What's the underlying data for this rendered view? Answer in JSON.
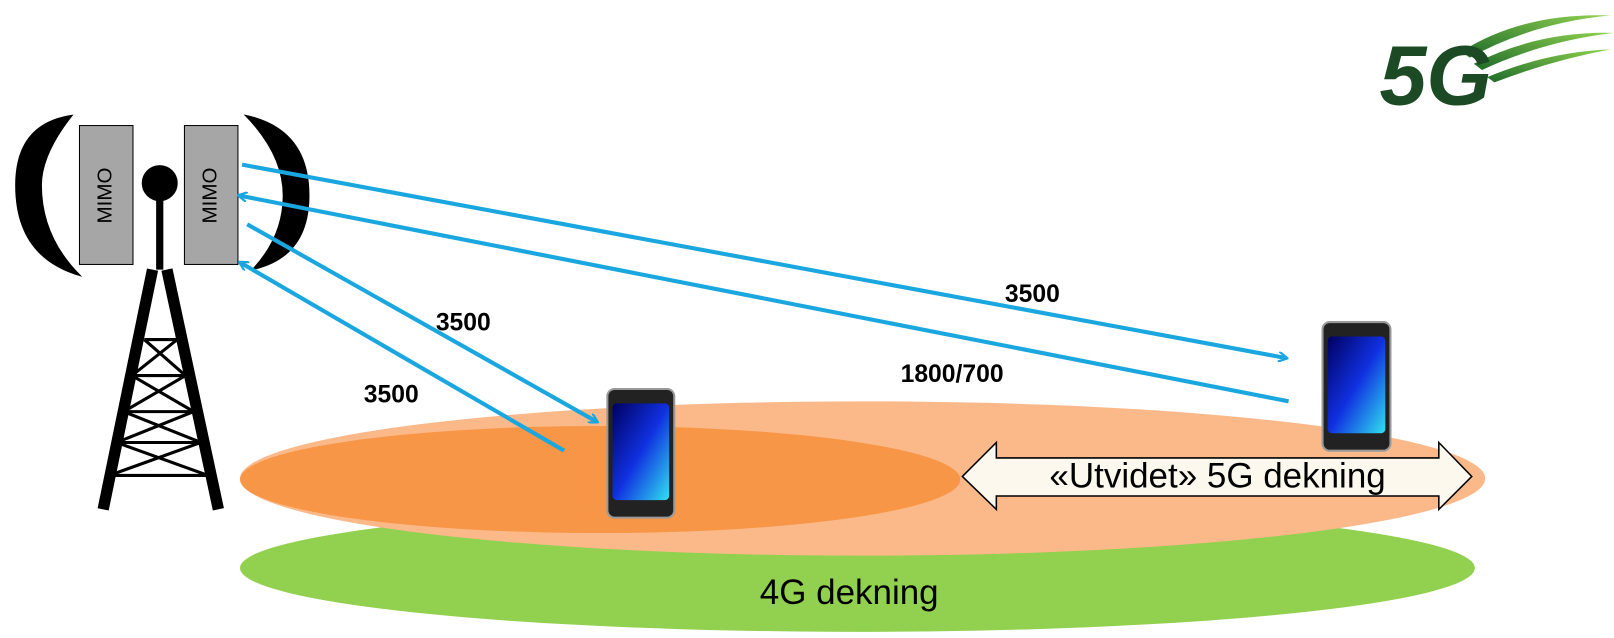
{
  "logo": "5G",
  "antennas": [
    {
      "label": "MIMO"
    },
    {
      "label": "MIMO"
    }
  ],
  "links": [
    {
      "label": "3500"
    },
    {
      "label": "1800/700"
    },
    {
      "label": "3500"
    },
    {
      "label": "3500"
    }
  ],
  "coverage": {
    "extended_5g": "«Utvidet» 5G dekning",
    "lte": "4G dekning"
  }
}
